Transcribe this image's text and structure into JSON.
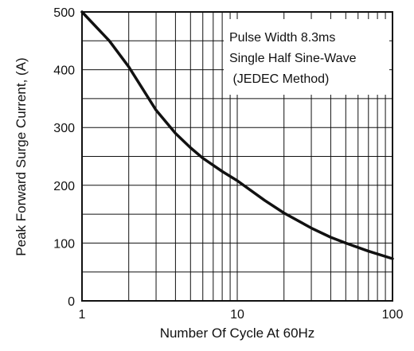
{
  "chart_data": {
    "type": "line",
    "title": "",
    "xlabel": "Number Of Cycle At 60Hz",
    "ylabel": "Peak Forward Surge Current, (A)",
    "xscale": "log",
    "xlim": [
      1,
      100
    ],
    "ylim": [
      0,
      500
    ],
    "x_ticks": [
      1,
      10,
      100
    ],
    "x_tick_labels": [
      "1",
      "10",
      "100"
    ],
    "y_ticks": [
      0,
      100,
      200,
      300,
      400,
      500
    ],
    "y_tick_labels": [
      "0",
      "100",
      "200",
      "300",
      "400",
      "500"
    ],
    "grid": true,
    "annotation": [
      "Pulse Width 8.3ms",
      "Single Half Sine-Wave",
      " (JEDEC Method)"
    ],
    "series": [
      {
        "x": [
          1,
          1.5,
          2,
          3,
          4,
          5,
          6,
          8,
          10,
          15,
          20,
          30,
          40,
          50,
          70,
          100
        ],
        "values": [
          500,
          450,
          405,
          330,
          290,
          265,
          247,
          224,
          208,
          174,
          152,
          126,
          110,
          100,
          86,
          73
        ]
      }
    ]
  }
}
